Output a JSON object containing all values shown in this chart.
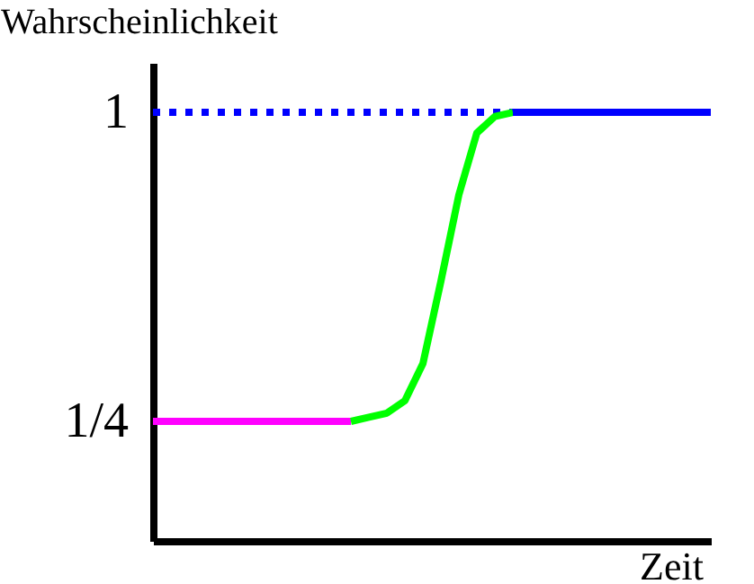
{
  "chart_data": {
    "type": "line",
    "xlabel": "Zeit",
    "ylabel": "Wahrscheinlichkeit",
    "categories": [
      null,
      null,
      null,
      null,
      null,
      null,
      null,
      null,
      null,
      null,
      null,
      null,
      null,
      null,
      null,
      null,
      null,
      null,
      null,
      null,
      null,
      null,
      null,
      null,
      null,
      null,
      null,
      null,
      null,
      null,
      null,
      null
    ],
    "ylim": [
      -0.04,
      1.12
    ],
    "yticks": [
      {
        "value": 0.25,
        "label": "1/4"
      },
      1
    ],
    "tick_labels": "y",
    "series": [
      {
        "color": "#0000ff",
        "line_style": "dotted",
        "values": [
          1,
          1,
          1,
          1,
          1,
          1,
          1,
          1,
          1,
          1,
          1,
          1,
          1,
          1,
          1,
          1,
          1,
          1,
          1,
          1,
          1,
          null,
          null,
          null,
          null,
          null,
          null,
          null,
          null,
          null,
          null,
          null
        ]
      },
      {
        "color": "#ff00ff",
        "values": [
          0.25,
          0.25,
          0.25,
          0.25,
          0.25,
          0.25,
          0.25,
          0.25,
          0.25,
          0.25,
          0.25,
          0.25,
          null,
          null,
          null,
          null,
          null,
          null,
          null,
          null,
          null,
          null,
          null,
          null,
          null,
          null,
          null,
          null,
          null,
          null,
          null,
          null
        ]
      },
      {
        "color": "#00ff00",
        "values": [
          null,
          null,
          null,
          null,
          null,
          null,
          null,
          null,
          null,
          null,
          null,
          0.25,
          0.26,
          0.27,
          0.3,
          0.39,
          0.59,
          0.8,
          0.95,
          0.99,
          1,
          null,
          null,
          null,
          null,
          null,
          null,
          null,
          null,
          null,
          null,
          null
        ]
      },
      {
        "color": "#0000ff",
        "values": [
          null,
          null,
          null,
          null,
          null,
          null,
          null,
          null,
          null,
          null,
          null,
          null,
          null,
          null,
          null,
          null,
          null,
          null,
          null,
          null,
          1,
          1,
          1,
          1,
          1,
          1,
          1,
          1,
          1,
          1,
          1,
          1
        ]
      }
    ]
  }
}
